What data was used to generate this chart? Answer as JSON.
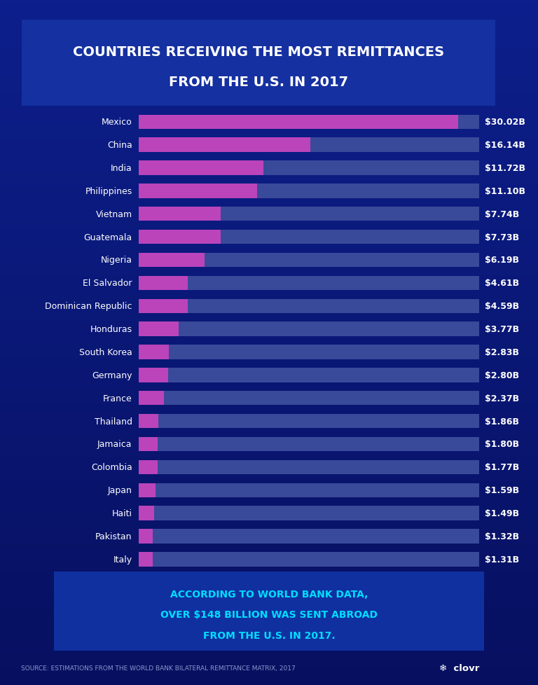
{
  "title_line1": "COUNTRIES RECEIVING THE MOST REMITTANCES",
  "title_line2": "FROM THE U.S. IN 2017",
  "countries": [
    "Mexico",
    "China",
    "India",
    "Philippines",
    "Vietnam",
    "Guatemala",
    "Nigeria",
    "El Salvador",
    "Dominican Republic",
    "Honduras",
    "South Korea",
    "Germany",
    "France",
    "Thailand",
    "Jamaica",
    "Colombia",
    "Japan",
    "Haiti",
    "Pakistan",
    "Italy"
  ],
  "values": [
    30.02,
    16.14,
    11.72,
    11.1,
    7.74,
    7.73,
    6.19,
    4.61,
    4.59,
    3.77,
    2.83,
    2.8,
    2.37,
    1.86,
    1.8,
    1.77,
    1.59,
    1.49,
    1.32,
    1.31
  ],
  "labels": [
    "$30.02B",
    "$16.14B",
    "$11.72B",
    "$11.10B",
    "$7.74B",
    "$7.73B",
    "$6.19B",
    "$4.61B",
    "$4.59B",
    "$3.77B",
    "$2.83B",
    "$2.80B",
    "$2.37B",
    "$1.86B",
    "$1.80B",
    "$1.77B",
    "$1.59B",
    "$1.49B",
    "$1.32B",
    "$1.31B"
  ],
  "bg_color_top": "#0d1f8c",
  "bg_color_bottom": "#071060",
  "bar_bg_color": "#3a4a9a",
  "bar_fg_color": "#bb44bb",
  "bar_max": 32,
  "text_color": "#ffffff",
  "title_box_border": "#00ccff",
  "title_box_fill": "#1530a0",
  "footnote_box_border": "#00ccff",
  "footnote_box_fill": "#1030a0",
  "footnote_text_color": "#00ddff",
  "footnote_line1": "ACCORDING TO WORLD BANK DATA,",
  "footnote_line2": "OVER $148 BILLION WAS SENT ABROAD",
  "footnote_line3": "FROM THE U.S. IN 2017.",
  "source_text": "SOURCE: ESTIMATIONS FROM THE WORLD BANK BILATERAL REMITTANCE MATRIX, 2017",
  "source_color": "#8899cc",
  "label_color": "#ffffff",
  "country_fontsize": 9,
  "label_fontsize": 9,
  "title_fontsize": 14,
  "footnote_fontsize": 10
}
